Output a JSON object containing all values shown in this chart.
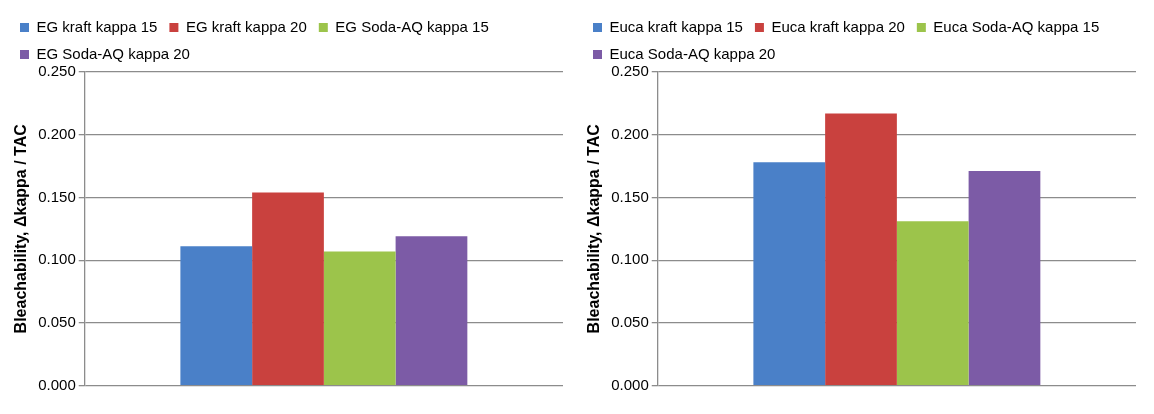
{
  "chart_data": [
    {
      "type": "bar",
      "ylabel": "Bleachability, Δkappa / TAC",
      "categories": [
        null
      ],
      "ylim": [
        0,
        0.25
      ],
      "yticks": [
        {
          "value": 0,
          "label": "0.000"
        },
        {
          "value": 0.05,
          "label": "0.050"
        },
        {
          "value": 0.1,
          "label": "0.100"
        },
        {
          "value": 0.15,
          "label": "0.150"
        },
        {
          "value": 0.2,
          "label": "0.200"
        },
        {
          "value": 0.25,
          "label": "0.250"
        }
      ],
      "grid": "y",
      "legend": "top",
      "series": [
        {
          "name": "EG kraft kappa 15",
          "color": "#4a80c8",
          "values": [
            0.111
          ]
        },
        {
          "name": "EG kraft kappa 20",
          "color": "#c9413e",
          "values": [
            0.154
          ]
        },
        {
          "name": "EG Soda-AQ kappa 15",
          "color": "#9cc44b",
          "values": [
            0.107
          ]
        },
        {
          "name": "EG Soda-AQ kappa 20",
          "color": "#7c5ba6",
          "values": [
            0.119
          ]
        }
      ]
    },
    {
      "type": "bar",
      "ylabel": "Bleachability, Δkappa / TAC",
      "categories": [
        null
      ],
      "ylim": [
        0,
        0.25
      ],
      "yticks": [
        {
          "value": 0,
          "label": "0.000"
        },
        {
          "value": 0.05,
          "label": "0.050"
        },
        {
          "value": 0.1,
          "label": "0.100"
        },
        {
          "value": 0.15,
          "label": "0.150"
        },
        {
          "value": 0.2,
          "label": "0.200"
        },
        {
          "value": 0.25,
          "label": "0.250"
        }
      ],
      "grid": "y",
      "legend": "top",
      "series": [
        {
          "name": "Euca kraft kappa 15",
          "color": "#4a80c8",
          "values": [
            0.178
          ]
        },
        {
          "name": "Euca kraft kappa 20",
          "color": "#c9413e",
          "values": [
            0.217
          ]
        },
        {
          "name": "Euca Soda-AQ kappa 15",
          "color": "#9cc44b",
          "values": [
            0.131
          ]
        },
        {
          "name": "Euca Soda-AQ kappa 20",
          "color": "#7c5ba6",
          "values": [
            0.171
          ]
        }
      ]
    }
  ]
}
